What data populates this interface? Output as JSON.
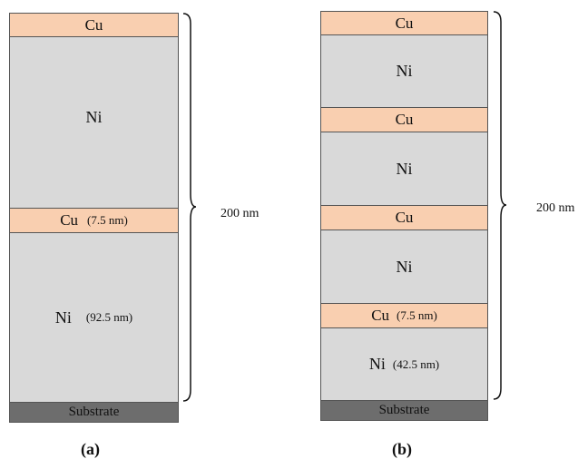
{
  "panel_a": {
    "cu_top": "Cu",
    "ni_top": "Ni",
    "cu_mid": "Cu",
    "cu_mid_note": "(7.5 nm)",
    "ni_bottom": "Ni",
    "ni_bottom_note": "(92.5 nm)",
    "substrate": "Substrate",
    "thickness": "200 nm",
    "caption": "(a)"
  },
  "panel_b": {
    "cu_1": "Cu",
    "ni_1": "Ni",
    "cu_2": "Cu",
    "ni_2": "Ni",
    "cu_3": "Cu",
    "ni_3": "Ni",
    "cu_4": "Cu",
    "cu_4_note": "(7.5 nm)",
    "ni_4": "Ni",
    "ni_4_note": "(42.5 nm)",
    "substrate": "Substrate",
    "thickness": "200 nm",
    "caption": "(b)"
  },
  "colors": {
    "cu": "#f9cfb0",
    "ni": "#d9d9d9",
    "substrate": "#6d6d6d"
  }
}
